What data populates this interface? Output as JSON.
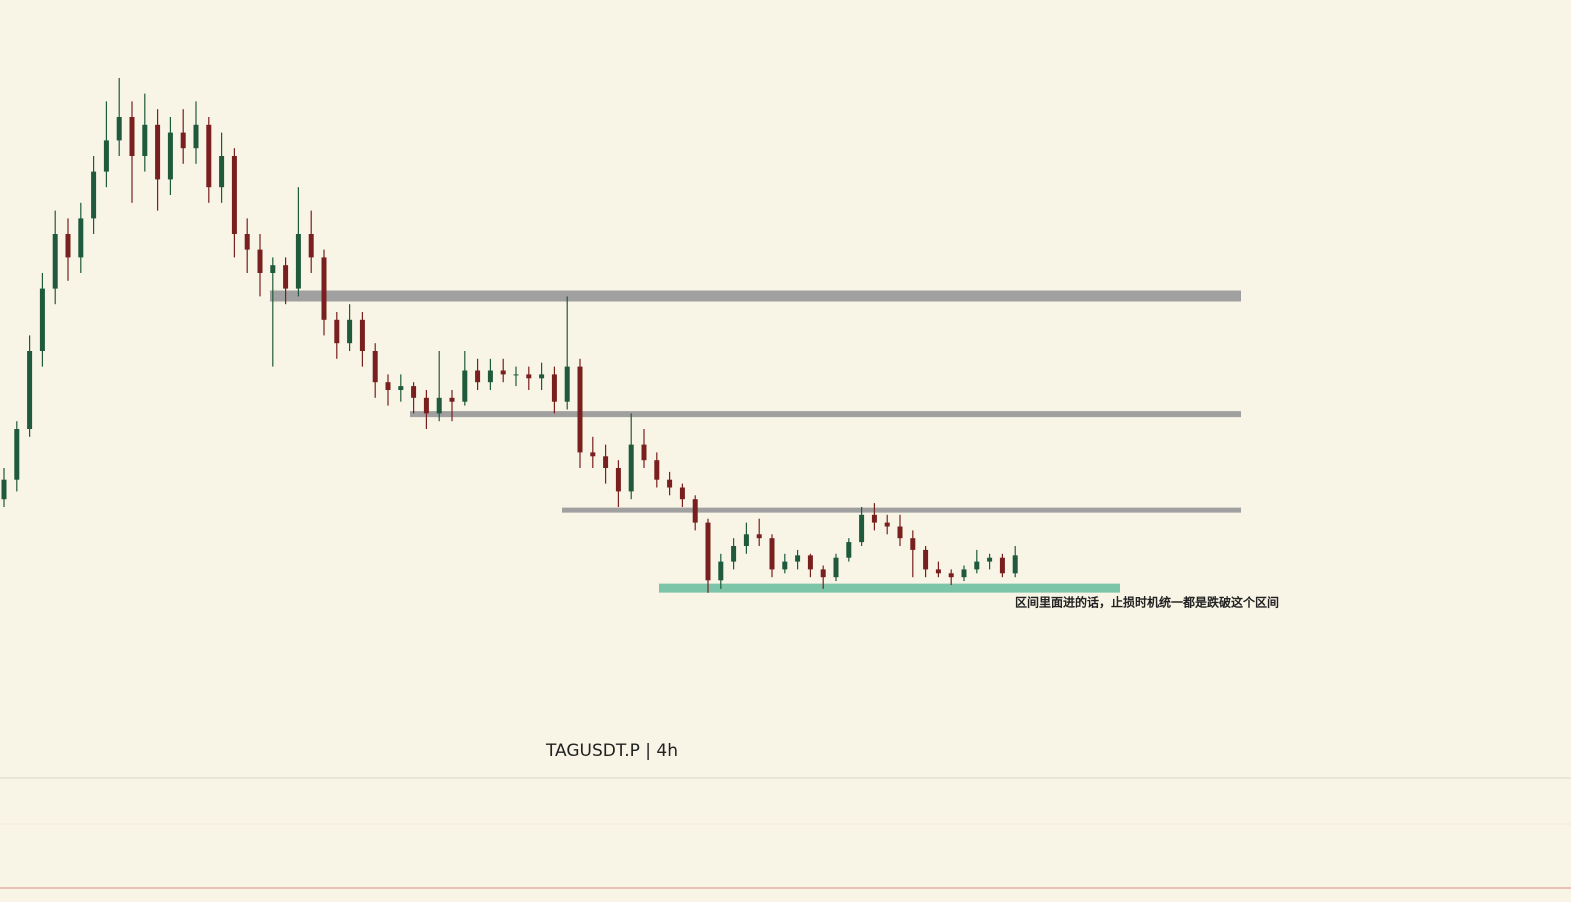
{
  "chart_data": {
    "type": "candlestick",
    "title": "TAGUSDT.P | 4h",
    "annotation": "区间里面进的话，止损时机统一都是跌破这个区间",
    "ylim": [
      0,
      100
    ],
    "up_color": "#1f5a3c",
    "down_color": "#7a1f1f",
    "candles": [
      [
        36,
        40,
        35,
        38.5
      ],
      [
        38.5,
        46,
        37,
        45
      ],
      [
        45,
        57,
        44,
        55
      ],
      [
        55,
        65,
        53,
        63
      ],
      [
        63,
        73,
        61,
        70
      ],
      [
        70,
        72,
        64,
        67
      ],
      [
        67,
        74,
        65,
        72
      ],
      [
        72,
        80,
        70,
        78
      ],
      [
        78,
        87,
        76,
        82
      ],
      [
        82,
        90,
        80,
        85
      ],
      [
        85,
        87,
        74,
        80
      ],
      [
        80,
        88,
        78,
        84
      ],
      [
        84,
        86,
        73,
        77
      ],
      [
        77,
        85,
        75,
        83
      ],
      [
        83,
        86,
        79,
        81
      ],
      [
        81,
        87,
        79,
        84
      ],
      [
        84,
        85,
        74,
        76
      ],
      [
        76,
        83,
        74,
        80
      ],
      [
        80,
        81,
        67,
        70
      ],
      [
        70,
        72,
        65,
        68
      ],
      [
        68,
        70,
        62,
        65
      ],
      [
        65,
        67,
        53,
        66
      ],
      [
        66,
        67,
        61,
        63
      ],
      [
        63,
        76,
        62,
        70
      ],
      [
        70,
        73,
        65,
        67
      ],
      [
        67,
        68,
        57,
        59
      ],
      [
        59,
        60,
        54,
        56
      ],
      [
        56,
        61,
        55,
        59
      ],
      [
        59,
        60,
        53,
        55
      ],
      [
        55,
        56,
        49,
        51
      ],
      [
        51,
        52,
        48,
        50
      ],
      [
        50,
        52,
        48.5,
        50.5
      ],
      [
        50.5,
        51,
        47,
        49
      ],
      [
        49,
        50,
        45,
        47
      ],
      [
        47,
        55,
        46,
        49
      ],
      [
        49,
        50,
        46,
        48.5
      ],
      [
        48.5,
        55,
        48,
        52.5
      ],
      [
        52.5,
        54,
        50,
        51
      ],
      [
        51,
        54,
        50,
        52.5
      ],
      [
        52.5,
        54,
        51,
        52
      ],
      [
        52,
        53,
        50.5,
        52
      ],
      [
        52,
        53,
        50,
        51.5
      ],
      [
        51.5,
        53.5,
        50,
        52
      ],
      [
        52,
        53,
        47,
        48.5
      ],
      [
        48.5,
        62,
        47.5,
        53
      ],
      [
        53,
        54,
        40,
        42
      ],
      [
        42,
        44,
        40,
        41.5
      ],
      [
        41.5,
        43,
        38,
        40
      ],
      [
        40,
        41,
        35,
        37
      ],
      [
        37,
        47,
        36,
        43
      ],
      [
        43,
        45,
        40,
        41
      ],
      [
        41,
        42,
        37.5,
        38.5
      ],
      [
        38.5,
        39.5,
        36.5,
        37.5
      ],
      [
        37.5,
        38,
        35,
        36
      ],
      [
        36,
        36.5,
        32,
        33
      ],
      [
        33,
        33.5,
        24,
        25.6
      ],
      [
        25.6,
        29,
        24.5,
        28
      ],
      [
        28,
        31,
        27,
        30
      ],
      [
        30,
        33,
        29,
        31.5
      ],
      [
        31.5,
        33.5,
        30,
        31
      ],
      [
        31,
        31.5,
        26,
        27
      ],
      [
        27,
        29,
        26.5,
        28
      ],
      [
        28,
        29.5,
        27,
        28.8
      ],
      [
        28.8,
        29,
        26,
        27
      ],
      [
        27,
        27.5,
        24.5,
        26
      ],
      [
        26,
        29,
        25.5,
        28.5
      ],
      [
        28.5,
        31,
        28,
        30.5
      ],
      [
        30.5,
        35,
        30,
        34
      ],
      [
        34,
        35.5,
        32,
        33
      ],
      [
        33,
        34,
        31.5,
        32.5
      ],
      [
        32.5,
        34,
        30,
        31
      ],
      [
        31,
        32,
        26,
        29.5
      ],
      [
        29.5,
        30,
        26,
        27
      ],
      [
        27,
        28,
        26,
        26.5
      ],
      [
        26.5,
        27,
        25,
        26
      ],
      [
        26,
        27.5,
        25.5,
        27
      ],
      [
        27,
        29.5,
        26.5,
        28
      ],
      [
        28,
        29,
        27,
        28.5
      ],
      [
        28.5,
        29,
        26,
        26.5
      ],
      [
        26.5,
        30,
        26,
        28.8
      ]
    ],
    "levels": [
      {
        "value": 62.05,
        "color": "#a0a0a0"
      },
      {
        "value": 46.9,
        "color": "#a0a0a0"
      },
      {
        "value": 34.6,
        "color": "#a0a0a0"
      },
      {
        "value": 24.6,
        "color": "#7cc5a8"
      }
    ]
  }
}
